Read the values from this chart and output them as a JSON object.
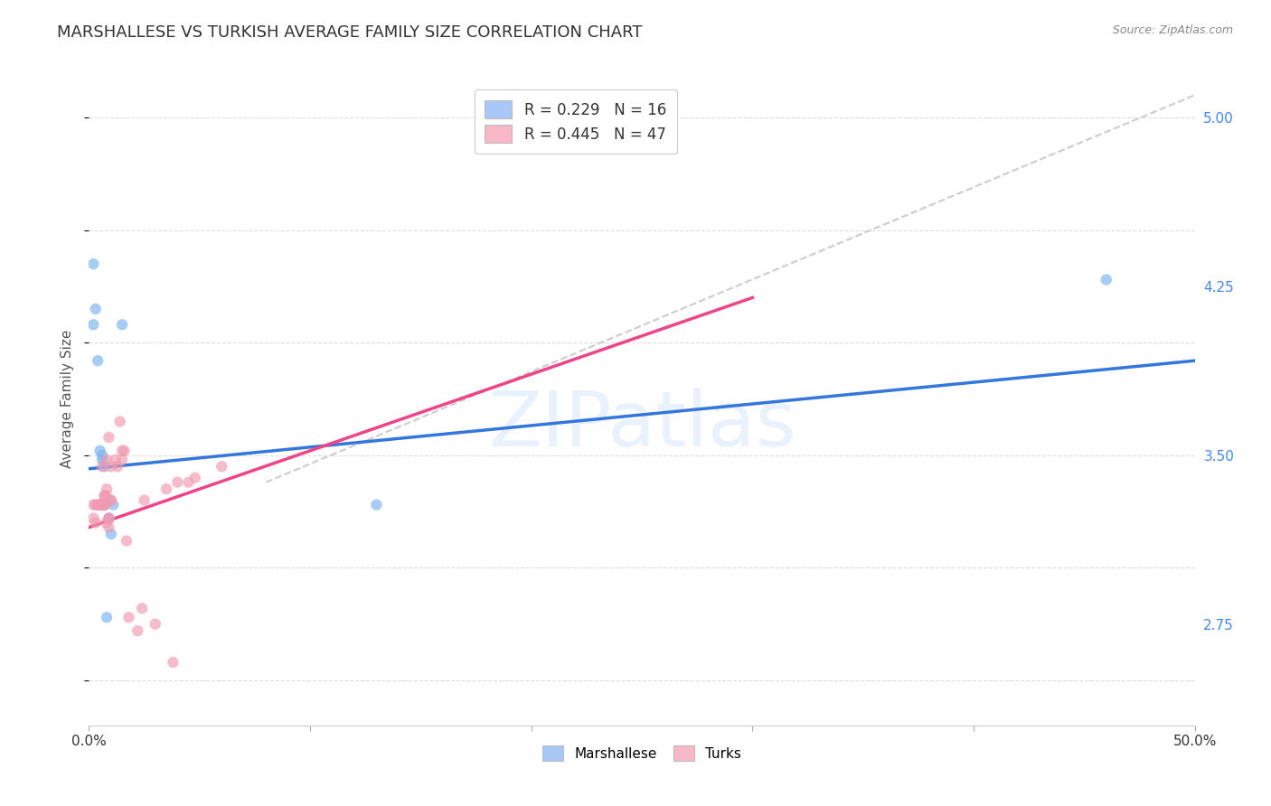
{
  "title": "MARSHALLESE VS TURKISH AVERAGE FAMILY SIZE CORRELATION CHART",
  "source": "Source: ZipAtlas.com",
  "ylabel": "Average Family Size",
  "yticks": [
    2.75,
    3.5,
    4.25,
    5.0
  ],
  "ytick_labels": [
    "2.75",
    "3.50",
    "4.25",
    "5.00"
  ],
  "xlim": [
    0.0,
    0.5
  ],
  "ylim": [
    2.3,
    5.2
  ],
  "watermark": "ZIPatlas",
  "marshallese_x": [
    0.002,
    0.003,
    0.004,
    0.005,
    0.006,
    0.007,
    0.007,
    0.008,
    0.009,
    0.01,
    0.015,
    0.13,
    0.46,
    0.002,
    0.006,
    0.011
  ],
  "marshallese_y": [
    4.35,
    4.15,
    3.92,
    3.52,
    3.5,
    3.45,
    3.28,
    2.78,
    3.22,
    3.15,
    4.08,
    3.28,
    4.28,
    4.08,
    3.48,
    3.28
  ],
  "turks_x": [
    0.002,
    0.002,
    0.003,
    0.003,
    0.004,
    0.004,
    0.005,
    0.005,
    0.005,
    0.006,
    0.006,
    0.006,
    0.007,
    0.007,
    0.007,
    0.007,
    0.007,
    0.007,
    0.008,
    0.008,
    0.008,
    0.008,
    0.009,
    0.009,
    0.009,
    0.009,
    0.01,
    0.01,
    0.01,
    0.012,
    0.013,
    0.014,
    0.015,
    0.015,
    0.016,
    0.017,
    0.018,
    0.022,
    0.024,
    0.025,
    0.03,
    0.035,
    0.038,
    0.04,
    0.045,
    0.048,
    0.06
  ],
  "turks_y": [
    3.28,
    3.22,
    3.28,
    3.2,
    3.28,
    3.28,
    3.28,
    3.28,
    3.28,
    3.28,
    3.28,
    3.45,
    3.28,
    3.32,
    3.32,
    3.28,
    3.28,
    3.28,
    3.32,
    3.35,
    3.48,
    3.2,
    3.22,
    3.18,
    3.58,
    3.22,
    3.45,
    3.3,
    3.3,
    3.48,
    3.45,
    3.65,
    3.52,
    3.48,
    3.52,
    3.12,
    2.78,
    2.72,
    2.82,
    3.3,
    2.75,
    3.35,
    2.58,
    3.38,
    3.38,
    3.4,
    3.45
  ],
  "blue_line_x": [
    0.0,
    0.5
  ],
  "blue_line_y": [
    3.44,
    3.92
  ],
  "pink_line_x": [
    0.0,
    0.3
  ],
  "pink_line_y": [
    3.18,
    4.2
  ],
  "diagonal_line_x": [
    0.08,
    0.5
  ],
  "diagonal_line_y": [
    3.38,
    5.1
  ],
  "dot_color_marshallese": "#7ab3f0",
  "dot_color_turks": "#f09ab0",
  "line_color_blue": "#3377dd",
  "line_color_pink": "#ee4488",
  "diagonal_color": "#cccccc",
  "background_color": "#ffffff",
  "grid_color": "#dddddd",
  "title_fontsize": 13,
  "axis_fontsize": 11,
  "tick_fontsize": 11,
  "dot_size": 80,
  "dot_alpha": 0.65,
  "legend_r_blue": "R = 0.229",
  "legend_n_blue": "N = 16",
  "legend_r_pink": "R = 0.445",
  "legend_n_pink": "N = 47",
  "legend_blue_color": "#a8c8f8",
  "legend_pink_color": "#f8b8c8",
  "tick_color_right": "#4488ee"
}
